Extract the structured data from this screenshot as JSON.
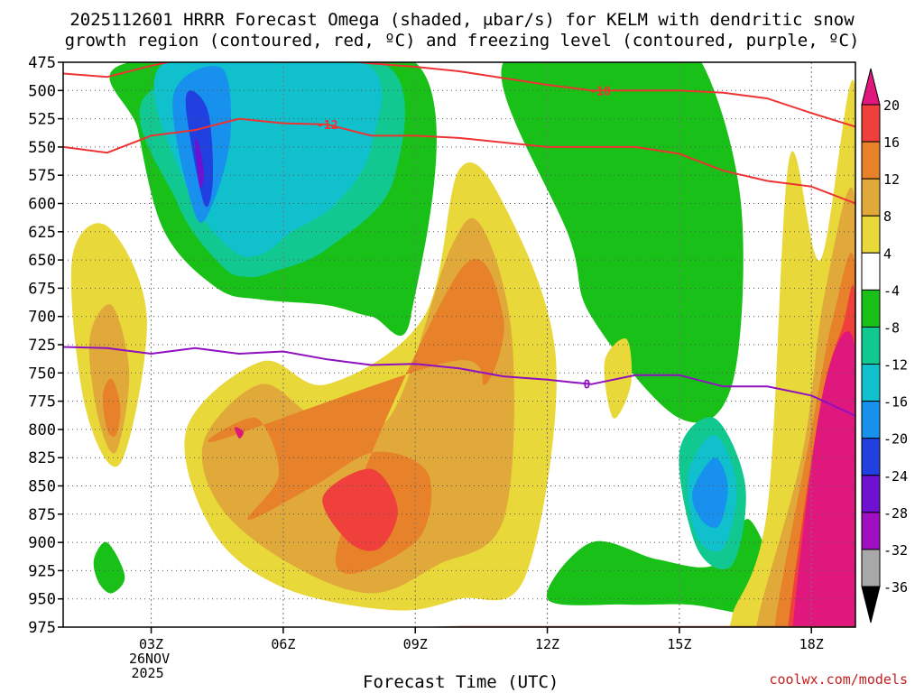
{
  "title_line1": "2025112601 HRRR Forecast Omega (shaded, μbar/s) for KELM with dendritic snow",
  "title_line2": "growth region (contoured, red, ºC) and freezing level (contoured, purple, ºC)",
  "credit": "coolwx.com/models",
  "chart_data": {
    "type": "heatmap",
    "title": "2025112601 HRRR Forecast Omega (shaded, μbar/s) for KELM with dendritic snow growth region (contoured, red, ºC) and freezing level (contoured, purple, ºC)",
    "xlabel": "Forecast Time (UTC)",
    "ylabel": "",
    "x_range_hours": [
      1,
      19
    ],
    "y_levels": [
      475,
      500,
      525,
      550,
      575,
      600,
      625,
      650,
      675,
      700,
      725,
      750,
      775,
      800,
      825,
      850,
      875,
      900,
      925,
      950,
      975
    ],
    "x_ticks": [
      {
        "hour": 3,
        "label": "03Z",
        "sub1": "26NOV",
        "sub2": "2025"
      },
      {
        "hour": 6,
        "label": "06Z"
      },
      {
        "hour": 9,
        "label": "09Z"
      },
      {
        "hour": 12,
        "label": "12Z"
      },
      {
        "hour": 15,
        "label": "15Z"
      },
      {
        "hour": 18,
        "label": "18Z"
      }
    ],
    "colorbar": {
      "labels": [
        "20",
        "16",
        "12",
        "8",
        "4",
        "-4",
        "-8",
        "-12",
        "-16",
        "-20",
        "-24",
        "-28",
        "-32",
        "-36"
      ],
      "colors": [
        "#e0187e",
        "#f0403c",
        "#e8822a",
        "#e0a93a",
        "#e8d83a",
        "#ffffff",
        "#18c018",
        "#10c890",
        "#10c0cc",
        "#1890ee",
        "#2040e0",
        "#7010d0",
        "#a010c0",
        "#a8a8a8",
        "#000000"
      ]
    },
    "omega_regions": [
      {
        "level": -8,
        "color": "#18c018",
        "hours": [
          2.5,
          2.7,
          3.3,
          4.5,
          5.5,
          7.0,
          8.0,
          8.9,
          9.0
        ],
        "pressure": [
          475,
          535,
          625,
          675,
          685,
          690,
          700,
          700,
          475
        ]
      },
      {
        "level": -12,
        "color": "#10c890",
        "hours": [
          3.0,
          3.6,
          4.6,
          5.2,
          5.8,
          7.0,
          8.5,
          8.2
        ],
        "pressure": [
          500,
          600,
          655,
          665,
          660,
          640,
          580,
          475
        ]
      },
      {
        "level": -16,
        "color": "#10c0cc",
        "hours": [
          3.3,
          3.8,
          4.8,
          5.5,
          6.2,
          7.2,
          8.0,
          7.8
        ],
        "pressure": [
          475,
          585,
          640,
          645,
          625,
          600,
          550,
          475
        ]
      },
      {
        "level": -20,
        "color": "#1890ee",
        "hours": [
          3.5,
          4.0,
          4.4,
          4.8,
          4.6
        ],
        "pressure": [
          505,
          610,
          600,
          540,
          480
        ]
      },
      {
        "level": -24,
        "color": "#2040e0",
        "hours": [
          3.8,
          4.2,
          4.4,
          4.3,
          3.9
        ],
        "pressure": [
          520,
          600,
          580,
          520,
          500
        ]
      },
      {
        "level": -28,
        "color": "#7010d0",
        "hours": [
          4.0,
          4.1,
          4.2,
          4.1
        ],
        "pressure": [
          545,
          585,
          575,
          550
        ]
      },
      {
        "level": -8,
        "color": "#18c018",
        "hours": [
          11.0,
          12.5,
          13.0,
          15.0,
          16.2,
          16.4,
          15.5,
          14.5
        ],
        "pressure": [
          475,
          630,
          700,
          790,
          760,
          600,
          475,
          475
        ]
      },
      {
        "level": -8,
        "color": "#18c018",
        "hours": [
          12.0,
          13.0,
          14.5,
          15.8,
          16.6,
          17.2,
          15.2,
          13.8
        ],
        "pressure": [
          950,
          900,
          915,
          920,
          880,
          960,
          955,
          955
        ]
      },
      {
        "level": -12,
        "color": "#10c890",
        "hours": [
          15.0,
          15.8,
          16.5,
          16.2,
          15.4
        ],
        "pressure": [
          820,
          790,
          850,
          920,
          905
        ]
      },
      {
        "level": -16,
        "color": "#10c0cc",
        "hours": [
          15.2,
          15.8,
          16.3,
          16.0,
          15.4
        ],
        "pressure": [
          840,
          805,
          850,
          905,
          895
        ]
      },
      {
        "level": -20,
        "color": "#1890ee",
        "hours": [
          15.3,
          15.8,
          16.1,
          15.9,
          15.5
        ],
        "pressure": [
          855,
          825,
          850,
          885,
          880
        ]
      },
      {
        "level": -8,
        "color": "#18c018",
        "hours": [
          1.7,
          2.0,
          2.4,
          2.1,
          1.8
        ],
        "pressure": [
          915,
          900,
          930,
          945,
          935
        ]
      },
      {
        "level": 4,
        "color": "#e8d83a",
        "hours": [
          1.2,
          2.0,
          2.9,
          2.3,
          1.5
        ],
        "pressure": [
          650,
          620,
          700,
          830,
          780
        ]
      },
      {
        "level": 8,
        "color": "#e0a93a",
        "hours": [
          1.6,
          2.1,
          2.5,
          2.2,
          1.8
        ],
        "pressure": [
          720,
          690,
          750,
          820,
          790
        ]
      },
      {
        "level": 12,
        "color": "#e8822a",
        "hours": [
          1.9,
          2.1,
          2.3,
          2.2,
          2.0
        ],
        "pressure": [
          770,
          755,
          780,
          805,
          800
        ]
      },
      {
        "level": 4,
        "color": "#e8d83a",
        "hours": [
          3.8,
          5.5,
          7.0,
          9.2,
          10.0,
          11.0,
          12.2,
          11.5,
          10.0,
          8.5,
          6.0,
          4.4
        ],
        "pressure": [
          800,
          740,
          760,
          700,
          570,
          600,
          740,
          930,
          950,
          960,
          940,
          890
        ]
      },
      {
        "level": 8,
        "color": "#e0a93a",
        "hours": [
          4.2,
          5.5,
          6.8,
          8.4,
          9.8,
          10.5,
          11.2,
          11.0,
          9.5,
          8.0,
          6.2,
          4.6
        ],
        "pressure": [
          810,
          760,
          790,
          790,
          640,
          620,
          720,
          880,
          920,
          945,
          920,
          870
        ]
      },
      {
        "level": 12,
        "color": "#e8822a",
        "hours": [
          4.5,
          5.4,
          5.9,
          5.2,
          6.7,
          8.1,
          9.3,
          9.0,
          7.2,
          10.0,
          11.0,
          10.6,
          9.8
        ],
        "pressure": [
          810,
          790,
          840,
          880,
          850,
          820,
          840,
          900,
          910,
          660,
          700,
          760,
          740
        ]
      },
      {
        "level": 16,
        "color": "#f0403c",
        "hours": [
          6.9,
          8.0,
          8.6,
          8.2,
          7.5
        ],
        "pressure": [
          860,
          835,
          870,
          905,
          900
        ]
      },
      {
        "level": 20,
        "color": "#e0187e",
        "hours": [
          4.9,
          5.1,
          5.0
        ],
        "pressure": [
          798,
          802,
          808
        ]
      },
      {
        "level": 4,
        "color": "#e8d83a",
        "hours": [
          13.3,
          13.8,
          13.9,
          13.5
        ],
        "pressure": [
          740,
          720,
          760,
          790
        ]
      },
      {
        "level": 4,
        "color": "#e8d83a",
        "hours": [
          16.2,
          17.0,
          17.5,
          18.2,
          19.0,
          19.0,
          16.5
        ],
        "pressure": [
          965,
          870,
          560,
          650,
          500,
          975,
          975
        ]
      },
      {
        "level": 8,
        "color": "#e0a93a",
        "hours": [
          16.8,
          17.8,
          18.3,
          19.0,
          19.0,
          17.0
        ],
        "pressure": [
          965,
          820,
          680,
          600,
          975,
          975
        ]
      },
      {
        "level": 12,
        "color": "#e8822a",
        "hours": [
          17.2,
          18.0,
          18.5,
          19.0,
          19.0,
          17.4
        ],
        "pressure": [
          965,
          800,
          700,
          660,
          975,
          975
        ]
      },
      {
        "level": 16,
        "color": "#f0403c",
        "hours": [
          17.5,
          18.2,
          18.7,
          19.0,
          19.0,
          17.6
        ],
        "pressure": [
          965,
          780,
          710,
          690,
          975,
          975
        ]
      },
      {
        "level": 20,
        "color": "#e0187e",
        "hours": [
          17.6,
          18.3,
          19.0,
          19.0,
          17.8
        ],
        "pressure": [
          965,
          760,
          730,
          975,
          975
        ]
      }
    ],
    "dgz_contours": [
      {
        "label": "-18",
        "label_hour": 13.2,
        "hours": [
          1.0,
          2.0,
          3.0,
          4.0,
          5.0,
          6.0,
          7.0,
          8.0,
          9.0,
          10.0,
          11.0,
          12.0,
          13.0,
          14.0,
          15.0,
          16.0,
          17.0,
          18.0,
          19.0
        ],
        "pressure": [
          485,
          488,
          478,
          470,
          466,
          468,
          472,
          476,
          479,
          483,
          489,
          495,
          500,
          500,
          500,
          502,
          507,
          520,
          532
        ]
      },
      {
        "label": "-12",
        "label_hour": 7.0,
        "hours": [
          1.0,
          2.0,
          3.0,
          4.0,
          5.0,
          6.0,
          7.0,
          8.0,
          9.0,
          10.0,
          11.0,
          12.0,
          13.0,
          14.0,
          15.0,
          16.0,
          17.0,
          18.0,
          19.0
        ],
        "pressure": [
          550,
          555,
          540,
          535,
          525,
          529,
          530,
          540,
          540,
          542,
          546,
          550,
          550,
          550,
          556,
          571,
          580,
          585,
          600
        ]
      }
    ],
    "freezing_level": {
      "label": "0",
      "label_hour": 12.9,
      "hours": [
        1.0,
        2.0,
        3.0,
        4.0,
        5.0,
        6.0,
        7.0,
        8.0,
        9.0,
        10.0,
        11.0,
        12.0,
        13.0,
        14.0,
        15.0,
        16.0,
        17.0,
        18.0,
        19.0
      ],
      "pressure": [
        727,
        728,
        733,
        728,
        733,
        731,
        738,
        743,
        742,
        746,
        753,
        756,
        760,
        752,
        752,
        762,
        762,
        770,
        788
      ]
    },
    "terrain_top_pressure": [
      980,
      980,
      978,
      977,
      976,
      976,
      975,
      975,
      975,
      974,
      974,
      974,
      974,
      974,
      974,
      974,
      974,
      974,
      974
    ]
  }
}
